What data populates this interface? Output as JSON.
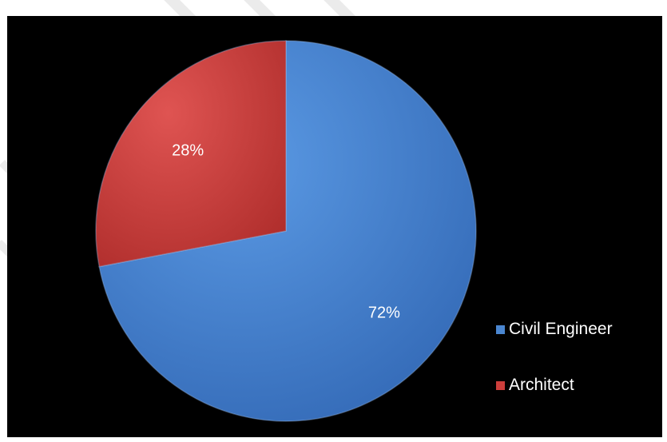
{
  "chart_data": {
    "type": "pie",
    "title": "",
    "slices": [
      {
        "label": "Civil Engineer",
        "value": 72,
        "display": "72%",
        "color": "#4a86d0"
      },
      {
        "label": "Architect",
        "value": 28,
        "display": "28%",
        "color": "#cc3e3b"
      }
    ],
    "legend": {
      "position": "right",
      "items": [
        "Civil Engineer",
        "Architect"
      ]
    },
    "background": "#000000"
  }
}
